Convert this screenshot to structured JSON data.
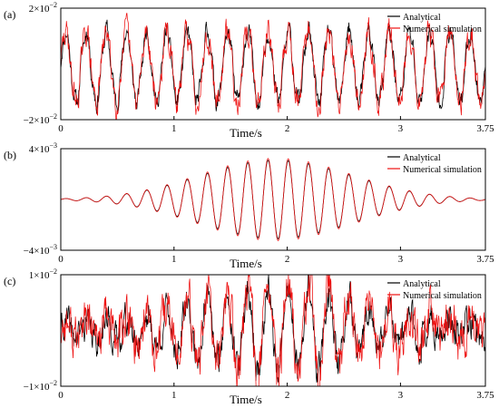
{
  "chart_data": [
    {
      "type": "line",
      "panel_label": "(a)",
      "xlabel": "Time/s",
      "xlim": [
        0,
        3.75
      ],
      "ylim": [
        -0.02,
        0.02
      ],
      "x_ticks": [
        "0",
        "1",
        "2",
        "3",
        "3.75"
      ],
      "y_ticks": [
        {
          "mantissa": "2",
          "exp": "−2",
          "value": 0.02
        },
        {
          "mantissa": "−2",
          "exp": "−2",
          "value": -0.02
        }
      ],
      "legend": {
        "placement": "top-right",
        "entries": [
          "Analytical",
          "Numerical simulation"
        ]
      },
      "grid": false,
      "series": [
        {
          "name": "Analytical",
          "color": "#000000",
          "signal": {
            "kind": "steady",
            "freq_hz": 5.6,
            "amplitude": 0.0125,
            "offset": -0.001,
            "noise": 0.0028,
            "seed": 11
          }
        },
        {
          "name": "Numerical simulation",
          "color": "#ee1111",
          "signal": {
            "kind": "steady",
            "freq_hz": 5.6,
            "amplitude": 0.0125,
            "offset": -0.001,
            "noise": 0.0038,
            "seed": 29
          }
        }
      ]
    },
    {
      "type": "line",
      "panel_label": "(b)",
      "xlabel": "Time/s",
      "xlim": [
        0,
        3.75
      ],
      "ylim": [
        -0.004,
        0.004
      ],
      "x_ticks": [
        "0",
        "1",
        "2",
        "3",
        "3.75"
      ],
      "y_ticks": [
        {
          "mantissa": "4",
          "exp": "−3",
          "value": 0.004
        },
        {
          "mantissa": "−4",
          "exp": "−3",
          "value": -0.004
        }
      ],
      "legend": {
        "placement": "top-right",
        "entries": [
          "Analytical",
          "Numerical simulation"
        ]
      },
      "grid": false,
      "series": [
        {
          "name": "Analytical",
          "color": "#000000",
          "signal": {
            "kind": "envelope",
            "freq_hz": 5.6,
            "amplitude": 0.0031,
            "center": 1.9,
            "width": 0.95,
            "offset": 0.0,
            "noise": 0.0,
            "seed": 3
          }
        },
        {
          "name": "Numerical simulation",
          "color": "#ee1111",
          "signal": {
            "kind": "envelope",
            "freq_hz": 5.6,
            "amplitude": 0.00325,
            "center": 1.9,
            "width": 0.95,
            "offset": 0.0,
            "noise": 0.0,
            "seed": 5
          }
        }
      ]
    },
    {
      "type": "line",
      "panel_label": "(c)",
      "xlabel": "Time/s",
      "xlim": [
        0,
        3.75
      ],
      "ylim": [
        -0.01,
        0.01
      ],
      "x_ticks": [
        "0",
        "1",
        "2",
        "3",
        "3.75"
      ],
      "y_ticks": [
        {
          "mantissa": "1",
          "exp": "−2",
          "value": 0.01
        },
        {
          "mantissa": "−1",
          "exp": "−2",
          "value": -0.01
        }
      ],
      "legend": {
        "placement": "top-right",
        "entries": [
          "Analytical",
          "Numerical simulation"
        ]
      },
      "grid": false,
      "series": [
        {
          "name": "Analytical",
          "color": "#000000",
          "signal": {
            "kind": "envelope",
            "freq_hz": 5.6,
            "amplitude": 0.0068,
            "center": 1.95,
            "width": 0.95,
            "offset": 0.0,
            "noise": 0.0024,
            "base": 0.0012,
            "seed": 41
          }
        },
        {
          "name": "Numerical simulation",
          "color": "#ee1111",
          "signal": {
            "kind": "envelope",
            "freq_hz": 5.6,
            "amplitude": 0.0072,
            "center": 1.95,
            "width": 0.95,
            "offset": 0.0,
            "noise": 0.0034,
            "base": 0.0014,
            "seed": 77
          }
        }
      ]
    }
  ]
}
